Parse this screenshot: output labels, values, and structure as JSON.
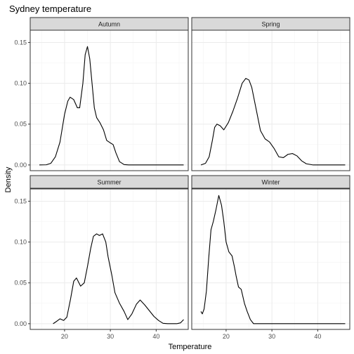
{
  "chart_data": {
    "type": "area",
    "title": "Sydney temperature",
    "xlabel": "Temperature",
    "ylabel": "Density",
    "xlim": [
      12.5,
      47
    ],
    "ylim": [
      -0.007,
      0.165
    ],
    "x_ticks": [
      20,
      30,
      40
    ],
    "x_tick_labels": [
      "20",
      "30",
      "40"
    ],
    "y_ticks": [
      0.0,
      0.05,
      0.1,
      0.15
    ],
    "y_tick_labels": [
      "0.00",
      "0.05",
      "0.10",
      "0.15"
    ],
    "grid": true,
    "panels": [
      {
        "name": "Autumn",
        "points": [
          [
            14.5,
            0
          ],
          [
            16,
            0.0002
          ],
          [
            17,
            0.002
          ],
          [
            18,
            0.01
          ],
          [
            19,
            0.028
          ],
          [
            20,
            0.062
          ],
          [
            20.7,
            0.078
          ],
          [
            21.2,
            0.083
          ],
          [
            22,
            0.08
          ],
          [
            22.8,
            0.07
          ],
          [
            23.3,
            0.07
          ],
          [
            24,
            0.1
          ],
          [
            24.5,
            0.135
          ],
          [
            25,
            0.145
          ],
          [
            25.5,
            0.13
          ],
          [
            26,
            0.1
          ],
          [
            26.5,
            0.07
          ],
          [
            27,
            0.058
          ],
          [
            27.7,
            0.052
          ],
          [
            28.5,
            0.043
          ],
          [
            29.2,
            0.03
          ],
          [
            30,
            0.027
          ],
          [
            30.6,
            0.025
          ],
          [
            31.2,
            0.015
          ],
          [
            32,
            0.004
          ],
          [
            33,
            0.0005
          ],
          [
            34,
            0
          ],
          [
            46,
            0
          ]
        ]
      },
      {
        "name": "Spring",
        "points": [
          [
            14.5,
            0
          ],
          [
            15.5,
            0.002
          ],
          [
            16.3,
            0.01
          ],
          [
            17,
            0.03
          ],
          [
            17.5,
            0.046
          ],
          [
            18,
            0.05
          ],
          [
            18.7,
            0.048
          ],
          [
            19.5,
            0.043
          ],
          [
            20.5,
            0.052
          ],
          [
            21.5,
            0.066
          ],
          [
            22.5,
            0.082
          ],
          [
            23.5,
            0.1
          ],
          [
            24.3,
            0.106
          ],
          [
            25,
            0.104
          ],
          [
            25.6,
            0.095
          ],
          [
            26.5,
            0.07
          ],
          [
            27.5,
            0.042
          ],
          [
            28.5,
            0.032
          ],
          [
            29.5,
            0.028
          ],
          [
            30.5,
            0.02
          ],
          [
            31.5,
            0.01
          ],
          [
            32.5,
            0.009
          ],
          [
            33.5,
            0.013
          ],
          [
            34.5,
            0.014
          ],
          [
            35.5,
            0.011
          ],
          [
            36.5,
            0.005
          ],
          [
            37.5,
            0.0015
          ],
          [
            39,
            0
          ],
          [
            46,
            0
          ]
        ]
      },
      {
        "name": "Summer",
        "points": [
          [
            17.5,
            0
          ],
          [
            18.3,
            0.003
          ],
          [
            19,
            0.006
          ],
          [
            19.8,
            0.004
          ],
          [
            20.5,
            0.008
          ],
          [
            21.3,
            0.03
          ],
          [
            22,
            0.052
          ],
          [
            22.6,
            0.056
          ],
          [
            23.5,
            0.046
          ],
          [
            24.3,
            0.05
          ],
          [
            25,
            0.07
          ],
          [
            25.7,
            0.092
          ],
          [
            26.3,
            0.107
          ],
          [
            27,
            0.11
          ],
          [
            27.6,
            0.108
          ],
          [
            28.3,
            0.11
          ],
          [
            29,
            0.1
          ],
          [
            29.5,
            0.082
          ],
          [
            30.3,
            0.06
          ],
          [
            31,
            0.038
          ],
          [
            32,
            0.025
          ],
          [
            33,
            0.015
          ],
          [
            33.8,
            0.005
          ],
          [
            34.7,
            0.012
          ],
          [
            35.7,
            0.024
          ],
          [
            36.5,
            0.029
          ],
          [
            37.5,
            0.023
          ],
          [
            38.5,
            0.016
          ],
          [
            39.5,
            0.009
          ],
          [
            40.5,
            0.004
          ],
          [
            41.5,
            0.0005
          ],
          [
            42.5,
            0
          ],
          [
            44.5,
            0
          ],
          [
            45.3,
            0.001
          ],
          [
            46,
            0.005
          ]
        ]
      },
      {
        "name": "Winter",
        "points": [
          [
            14.5,
            0.015
          ],
          [
            14.8,
            0.012
          ],
          [
            15.2,
            0.018
          ],
          [
            15.7,
            0.04
          ],
          [
            16.2,
            0.08
          ],
          [
            16.7,
            0.115
          ],
          [
            17.2,
            0.125
          ],
          [
            17.8,
            0.14
          ],
          [
            18.4,
            0.157
          ],
          [
            19,
            0.145
          ],
          [
            19.5,
            0.125
          ],
          [
            20,
            0.1
          ],
          [
            20.6,
            0.088
          ],
          [
            21.3,
            0.083
          ],
          [
            21.8,
            0.07
          ],
          [
            22.2,
            0.058
          ],
          [
            22.7,
            0.045
          ],
          [
            23.3,
            0.042
          ],
          [
            24,
            0.025
          ],
          [
            24.6,
            0.015
          ],
          [
            25.3,
            0.005
          ],
          [
            26,
            0
          ],
          [
            46,
            0
          ]
        ]
      }
    ]
  }
}
